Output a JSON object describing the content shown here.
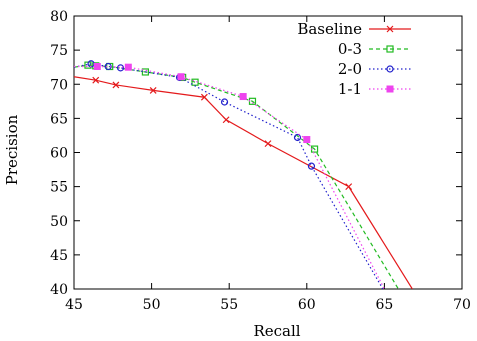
{
  "chart_data": {
    "type": "line",
    "xlabel": "Recall",
    "ylabel": "Precision",
    "xlim": [
      45,
      70
    ],
    "ylim": [
      40,
      80
    ],
    "xticks": [
      45,
      50,
      55,
      60,
      65,
      70
    ],
    "yticks": [
      40,
      45,
      50,
      55,
      60,
      65,
      70,
      75,
      80
    ],
    "grid": false,
    "legend_position": "top-right",
    "series": [
      {
        "name": "Baseline",
        "color": "#e41a1c",
        "dash": "solid",
        "marker": "x",
        "points": [
          [
            45.0,
            71.1
          ],
          [
            46.4,
            70.6
          ],
          [
            47.7,
            69.9
          ],
          [
            50.1,
            69.1
          ],
          [
            53.4,
            68.1
          ],
          [
            54.8,
            64.8
          ],
          [
            57.5,
            61.3
          ],
          [
            62.7,
            55.0
          ],
          [
            66.8,
            40.0
          ]
        ]
      },
      {
        "name": "0-3",
        "color": "#22bb22",
        "dash": "4,3",
        "marker": "square",
        "points": [
          [
            45.0,
            72.5
          ],
          [
            45.9,
            72.8
          ],
          [
            46.4,
            72.7
          ],
          [
            47.3,
            72.6
          ],
          [
            49.6,
            71.8
          ],
          [
            52.0,
            71.0
          ],
          [
            52.8,
            70.3
          ],
          [
            56.5,
            67.5
          ],
          [
            60.5,
            60.5
          ],
          [
            65.9,
            40.0
          ]
        ]
      },
      {
        "name": "2-0",
        "color": "#2222cc",
        "dash": "1.5,2.5",
        "marker": "circle",
        "points": [
          [
            45.0,
            72.5
          ],
          [
            46.1,
            73.0
          ],
          [
            47.2,
            72.6
          ],
          [
            48.0,
            72.4
          ],
          [
            51.8,
            71.0
          ],
          [
            54.7,
            67.4
          ],
          [
            59.4,
            62.2
          ],
          [
            60.3,
            58.0
          ],
          [
            64.9,
            40.0
          ]
        ]
      },
      {
        "name": "1-1",
        "color": "#ee44ee",
        "dash": "1.5,2.5",
        "marker": "filled-square",
        "points": [
          [
            45.0,
            72.6
          ],
          [
            46.5,
            72.6
          ],
          [
            48.5,
            72.5
          ],
          [
            51.9,
            71.1
          ],
          [
            55.9,
            68.2
          ],
          [
            60.0,
            61.9
          ],
          [
            65.0,
            40.0
          ]
        ]
      }
    ]
  }
}
